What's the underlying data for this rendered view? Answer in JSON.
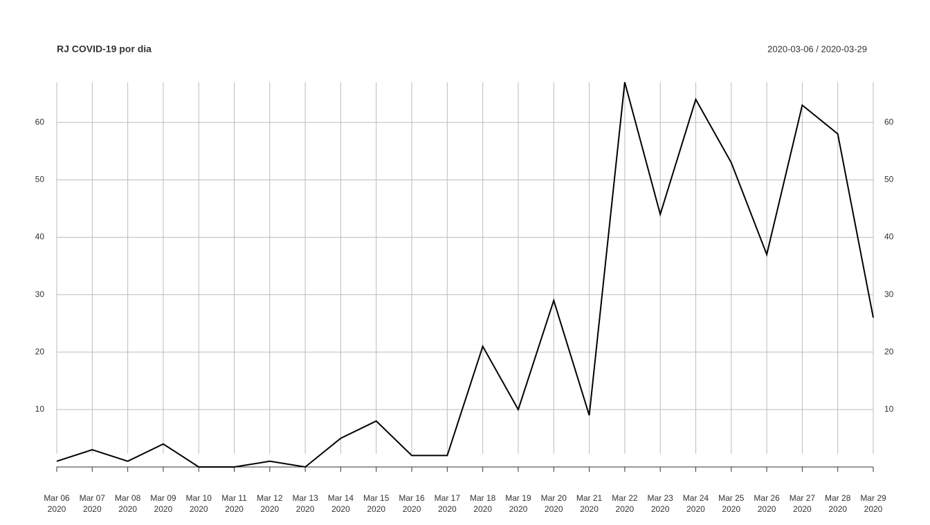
{
  "chart_data": {
    "type": "line",
    "title": "RJ COVID-19 por dia",
    "subtitle": "2020-03-06 / 2020-03-29",
    "categories": [
      [
        "Mar 06",
        "2020"
      ],
      [
        "Mar 07",
        "2020"
      ],
      [
        "Mar 08",
        "2020"
      ],
      [
        "Mar 09",
        "2020"
      ],
      [
        "Mar 10",
        "2020"
      ],
      [
        "Mar 11",
        "2020"
      ],
      [
        "Mar 12",
        "2020"
      ],
      [
        "Mar 13",
        "2020"
      ],
      [
        "Mar 14",
        "2020"
      ],
      [
        "Mar 15",
        "2020"
      ],
      [
        "Mar 16",
        "2020"
      ],
      [
        "Mar 17",
        "2020"
      ],
      [
        "Mar 18",
        "2020"
      ],
      [
        "Mar 19",
        "2020"
      ],
      [
        "Mar 20",
        "2020"
      ],
      [
        "Mar 21",
        "2020"
      ],
      [
        "Mar 22",
        "2020"
      ],
      [
        "Mar 23",
        "2020"
      ],
      [
        "Mar 24",
        "2020"
      ],
      [
        "Mar 25",
        "2020"
      ],
      [
        "Mar 26",
        "2020"
      ],
      [
        "Mar 27",
        "2020"
      ],
      [
        "Mar 28",
        "2020"
      ],
      [
        "Mar 29",
        "2020"
      ]
    ],
    "values": [
      1,
      3,
      1,
      4,
      0,
      0,
      1,
      0,
      5,
      8,
      2,
      2,
      21,
      10,
      29,
      9,
      67,
      44,
      64,
      53,
      37,
      63,
      58,
      26
    ],
    "color": "#000000",
    "ylim": [
      0,
      67
    ],
    "yticks": [
      10,
      20,
      30,
      40,
      50,
      60
    ],
    "grid": true
  }
}
